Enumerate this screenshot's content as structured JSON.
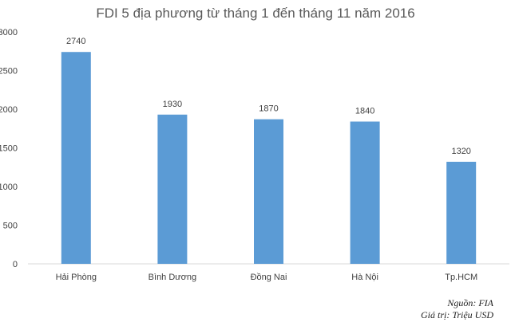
{
  "chart_data": {
    "type": "bar",
    "title": "FDI 5 địa phương từ tháng 1 đến tháng 11 năm 2016",
    "categories": [
      "Hải Phòng",
      "Bình Dương",
      "Đồng Nai",
      "Hà Nội",
      "Tp.HCM"
    ],
    "values": [
      2740,
      1930,
      1870,
      1840,
      1320
    ],
    "data_labels": [
      "2740",
      "1930",
      "1870",
      "1840",
      "1320"
    ],
    "yticks": [
      "0",
      "500",
      "1000",
      "1500",
      "2000",
      "2500",
      "3000"
    ],
    "ylim": [
      0,
      3000
    ],
    "grid": false,
    "bar_color": "#5B9BD5"
  },
  "notes": {
    "source": "Nguồn: FIA",
    "unit": "Giá trị: Triệu USD"
  }
}
